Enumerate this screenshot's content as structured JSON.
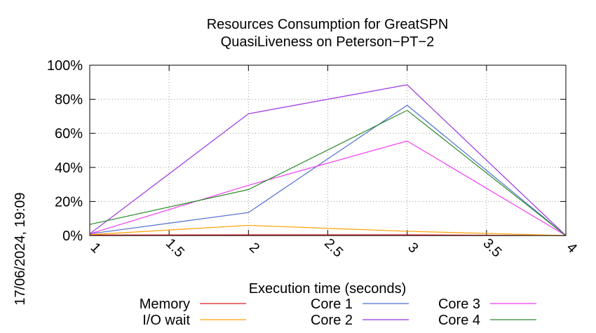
{
  "chart_data": {
    "type": "line",
    "title_lines": [
      "Resources Consumption for GreatSPN",
      "QuasiLiveness on Peterson−PT−2"
    ],
    "xlabel": "Execution time (seconds)",
    "ylabel": "",
    "timestamp": "17/06/2024, 19:09",
    "xlim": [
      1,
      4
    ],
    "ylim": [
      0,
      100
    ],
    "x_ticks": [
      1,
      1.5,
      2,
      2.5,
      3,
      3.5,
      4
    ],
    "x_tick_labels": [
      "1",
      "1.5",
      "2",
      "2.5",
      "3",
      "3.5",
      "4"
    ],
    "y_ticks": [
      0,
      20,
      40,
      60,
      80,
      100
    ],
    "y_tick_labels": [
      "0%",
      "20%",
      "40%",
      "60%",
      "80%",
      "100%"
    ],
    "grid": true,
    "legend_position": "bottom",
    "x": [
      1,
      2,
      3,
      4
    ],
    "series": [
      {
        "name": "Memory",
        "color": "#e41a1c",
        "values": [
          0.3,
          0.4,
          0.4,
          0
        ]
      },
      {
        "name": "I/O wait",
        "color": "#ff9f00",
        "values": [
          0.5,
          6,
          2.5,
          0
        ]
      },
      {
        "name": "Core 1",
        "color": "#4f6fd0",
        "values": [
          1,
          13.5,
          76.5,
          0
        ]
      },
      {
        "name": "Core 2",
        "color": "#9b30e0",
        "values": [
          1,
          71.5,
          88.5,
          0
        ]
      },
      {
        "name": "Core 3",
        "color": "#f23bf2",
        "values": [
          1,
          29.5,
          55.5,
          0
        ]
      },
      {
        "name": "Core 4",
        "color": "#2a8a2a",
        "values": [
          6.5,
          27,
          73.5,
          0
        ]
      }
    ]
  }
}
